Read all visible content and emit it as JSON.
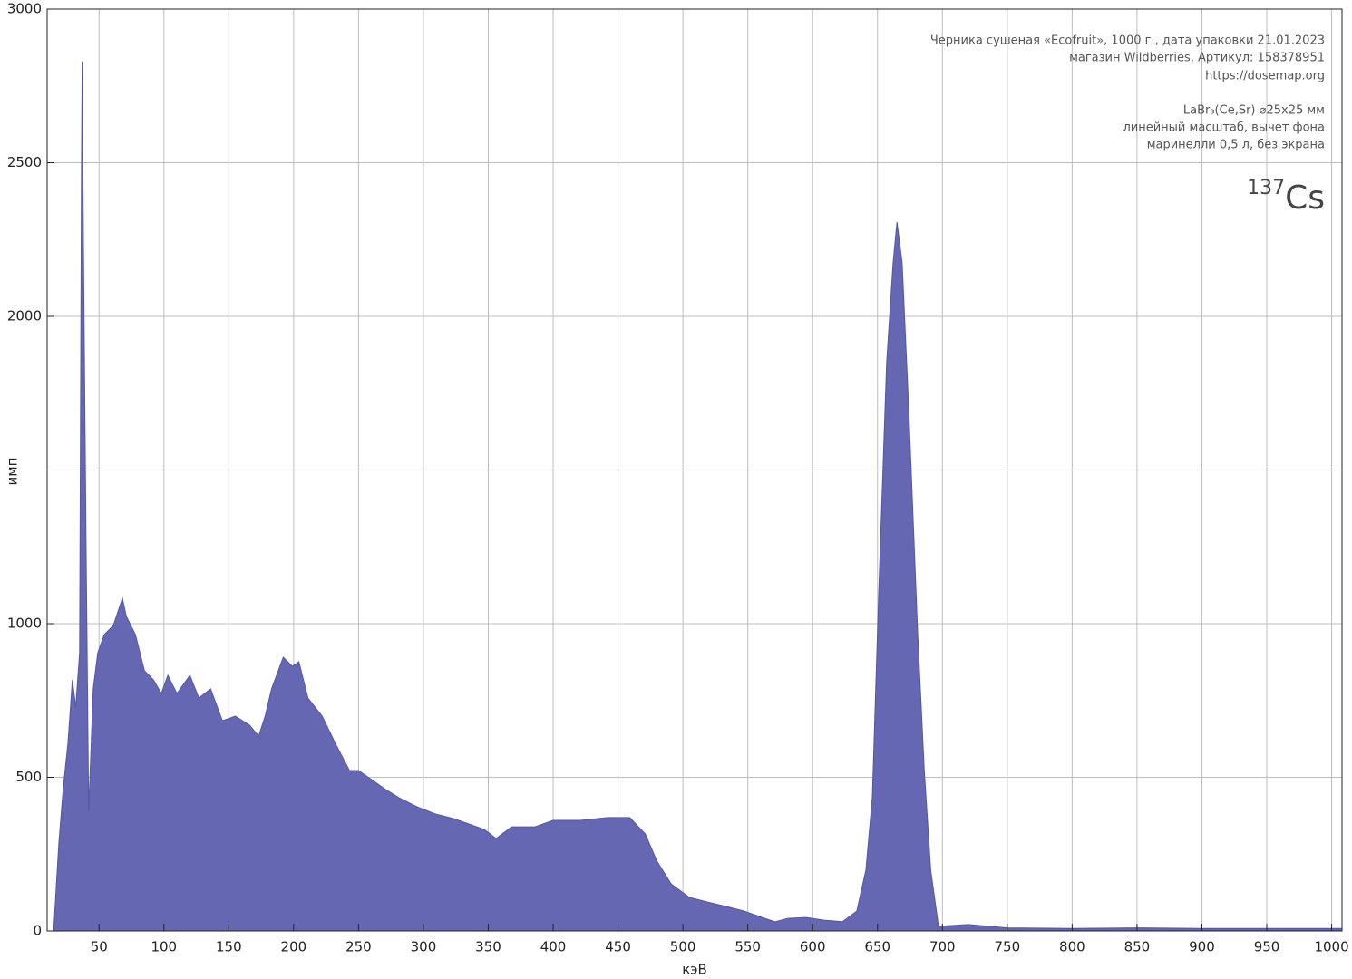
{
  "chart_data": {
    "type": "area",
    "xlabel": "кэВ",
    "ylabel": "имп",
    "annotations": [
      "Черника сушеная «Ecofruit», 1000 г., дата упаковки 21.01.2023",
      "магазин Wildberries, Артикул: 158378951",
      "https://dosemap.org",
      "LaBr₃(Ce,Sr) ⌀25x25 мм",
      "линейный масштаб, вычет фона",
      "маринелли 0,5 л, без экрана"
    ],
    "isotope": {
      "mass": "137",
      "symbol": "Cs"
    },
    "color": "#6567b3",
    "x": [
      15,
      19,
      22.4,
      26,
      29.4,
      32,
      35,
      36.5,
      37,
      38,
      40,
      42,
      45.5,
      49,
      54,
      61,
      68,
      71,
      78,
      85,
      92,
      98,
      103,
      110,
      120,
      127,
      136,
      145,
      155,
      166,
      173,
      178,
      183,
      192,
      199,
      204,
      211,
      222,
      232,
      243,
      250,
      260,
      270,
      281,
      295,
      309,
      323,
      337,
      347,
      356,
      368,
      386,
      400,
      421,
      442,
      459,
      471,
      480,
      491,
      505,
      519,
      533,
      547,
      561,
      571,
      581,
      595,
      609,
      623,
      634,
      641,
      646,
      651,
      657,
      662,
      665,
      669,
      674,
      681,
      686,
      691,
      697,
      720,
      750,
      800,
      850,
      900,
      950,
      1000,
      1008
    ],
    "values": [
      0,
      286,
      463,
      610,
      817,
      729,
      905,
      2500,
      2830,
      2200,
      1260,
      389,
      788,
      905,
      965,
      994,
      1083,
      1024,
      965,
      847,
      817,
      773,
      832,
      773,
      832,
      758,
      788,
      684,
      699,
      670,
      634,
      699,
      788,
      891,
      861,
      876,
      758,
      699,
      611,
      522,
      522,
      493,
      463,
      434,
      404,
      381,
      366,
      345,
      330,
      301,
      339,
      339,
      360,
      360,
      369,
      369,
      316,
      227,
      153,
      109,
      94,
      80,
      65,
      44,
      30,
      41,
      44,
      35,
      30,
      65,
      198,
      434,
      1112,
      1850,
      2174,
      2307,
      2174,
      1702,
      965,
      522,
      198,
      15,
      21,
      10,
      8,
      10,
      8,
      8,
      8,
      8
    ],
    "xlim": [
      10,
      1008
    ],
    "ylim": [
      0,
      3000
    ],
    "xticks": [
      50,
      100,
      150,
      200,
      250,
      300,
      350,
      400,
      450,
      500,
      550,
      600,
      650,
      700,
      750,
      800,
      850,
      900,
      950,
      1000
    ],
    "yticks": [
      0,
      500,
      1000,
      2000,
      2500,
      3000
    ],
    "ygrid": [
      0,
      500,
      1000,
      1500,
      2000,
      2500,
      3000
    ],
    "grid": true
  }
}
